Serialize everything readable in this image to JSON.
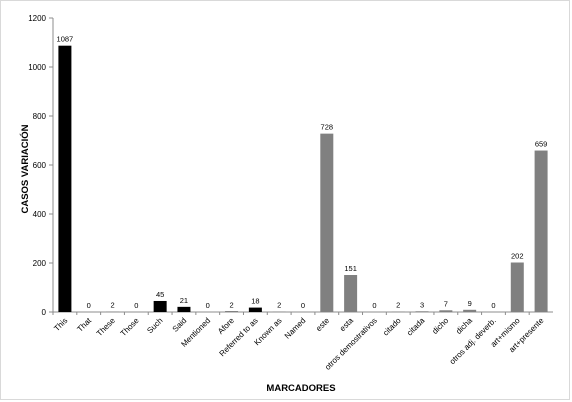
{
  "chart_data": {
    "type": "bar",
    "title": "",
    "xlabel": "MARCADORES",
    "ylabel": "CASOS VARIACIÓN",
    "ylim": [
      0,
      1200
    ],
    "yticks": [
      0,
      200,
      400,
      600,
      800,
      1000,
      1200
    ],
    "grid": false,
    "categories": [
      "This",
      "That",
      "These",
      "Those",
      "Such",
      "Said",
      "Mentioned",
      "Afore",
      "Referred to as",
      "Known as",
      "Named",
      "este",
      "esta",
      "otros demostrativos",
      "citado",
      "citada",
      "dicho",
      "dicha",
      "otros adj. deverb.",
      "art+mismo",
      "art+presente"
    ],
    "values": [
      1087,
      0,
      2,
      0,
      45,
      21,
      0,
      2,
      18,
      2,
      0,
      728,
      151,
      0,
      2,
      3,
      7,
      9,
      0,
      202,
      659
    ],
    "colors": [
      "#000000",
      "#000000",
      "#808080",
      "#000000",
      "#000000",
      "#000000",
      "#000000",
      "#000000",
      "#000000",
      "#808080",
      "#000000",
      "#808080",
      "#808080",
      "#808080",
      "#808080",
      "#808080",
      "#808080",
      "#808080",
      "#808080",
      "#808080",
      "#808080"
    ]
  }
}
